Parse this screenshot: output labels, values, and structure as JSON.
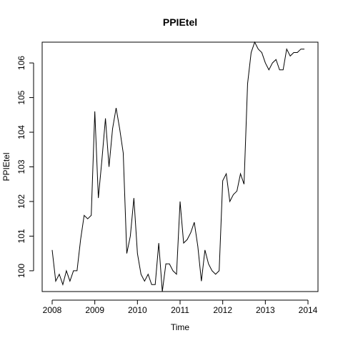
{
  "chart_data": {
    "type": "line",
    "title": "PPIEtel",
    "xlabel": "Time",
    "ylabel": "PPIEtel",
    "xlim": [
      2008,
      2014
    ],
    "ylim": [
      99.4,
      106.6
    ],
    "x_ticks": [
      2008,
      2009,
      2010,
      2011,
      2012,
      2013,
      2014
    ],
    "y_ticks": [
      100,
      101,
      102,
      103,
      104,
      105,
      106
    ],
    "grid": false,
    "legend": "none",
    "line_color": "#000000",
    "series": [
      {
        "x": [
          2008.0,
          2008.0833,
          2008.1667,
          2008.25,
          2008.3333,
          2008.4167,
          2008.5,
          2008.5833,
          2008.6667,
          2008.75,
          2008.8333,
          2008.9167,
          2009.0,
          2009.0833,
          2009.1667,
          2009.25,
          2009.3333,
          2009.4167,
          2009.5,
          2009.5833,
          2009.6667,
          2009.75,
          2009.8333,
          2009.9167,
          2010.0,
          2010.0833,
          2010.1667,
          2010.25,
          2010.3333,
          2010.4167,
          2010.5,
          2010.5833,
          2010.6667,
          2010.75,
          2010.8333,
          2010.9167,
          2011.0,
          2011.0833,
          2011.1667,
          2011.25,
          2011.3333,
          2011.4167,
          2011.5,
          2011.5833,
          2011.6667,
          2011.75,
          2011.8333,
          2011.9167,
          2012.0,
          2012.0833,
          2012.1667,
          2012.25,
          2012.3333,
          2012.4167,
          2012.5,
          2012.5833,
          2012.6667,
          2012.75,
          2012.8333,
          2012.9167,
          2013.0,
          2013.0833,
          2013.1667,
          2013.25,
          2013.3333,
          2013.4167,
          2013.5,
          2013.5833,
          2013.6667,
          2013.75,
          2013.8333,
          2013.9167
        ],
        "values": [
          100.6,
          99.7,
          99.9,
          99.6,
          100.0,
          99.7,
          100.0,
          100.0,
          100.9,
          101.6,
          101.5,
          101.6,
          104.6,
          102.1,
          103.2,
          104.4,
          103.0,
          104.1,
          104.7,
          104.1,
          103.4,
          100.5,
          101.0,
          102.1,
          100.5,
          99.9,
          99.7,
          99.9,
          99.6,
          99.6,
          100.8,
          99.4,
          100.2,
          100.2,
          100.0,
          99.9,
          102.0,
          100.8,
          100.9,
          101.1,
          101.4,
          100.7,
          99.7,
          100.6,
          100.2,
          100.0,
          99.9,
          100.0,
          102.6,
          102.8,
          102.0,
          102.2,
          102.3,
          102.8,
          102.5,
          105.4,
          106.3,
          106.6,
          106.4,
          106.3,
          106.0,
          105.8,
          106.0,
          106.1,
          105.8,
          105.8,
          106.4,
          106.2,
          106.3,
          106.3,
          106.4,
          106.4
        ]
      }
    ]
  }
}
